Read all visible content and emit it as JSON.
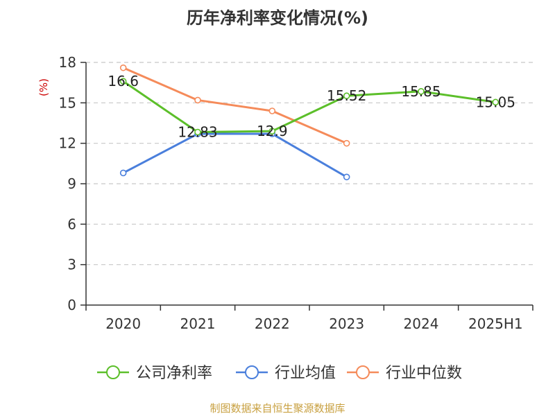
{
  "chart_data": {
    "type": "line",
    "title": "历年净利率变化情况(%)",
    "ylabel": "(%)",
    "categories": [
      "2020",
      "2021",
      "2022",
      "2023",
      "2024",
      "2025H1"
    ],
    "ylim": [
      0,
      18
    ],
    "yticks": [
      0,
      3,
      6,
      9,
      12,
      15,
      18
    ],
    "grid": true,
    "legend_position": "bottom",
    "series": [
      {
        "name": "公司净利率",
        "color": "#5cbf2a",
        "values": [
          16.6,
          12.83,
          12.9,
          15.52,
          15.85,
          15.05
        ],
        "labels": [
          "16.6",
          "12.83",
          "12.9",
          "15.52",
          "15.85",
          "15.05"
        ]
      },
      {
        "name": "行业均值",
        "color": "#4a7fdc",
        "values": [
          9.8,
          12.7,
          12.7,
          9.5,
          null,
          null
        ]
      },
      {
        "name": "行业中位数",
        "color": "#f58b5a",
        "values": [
          17.6,
          15.2,
          14.4,
          12.0,
          null,
          null
        ]
      }
    ]
  },
  "source_text": "制图数据来自恒生聚源数据库"
}
